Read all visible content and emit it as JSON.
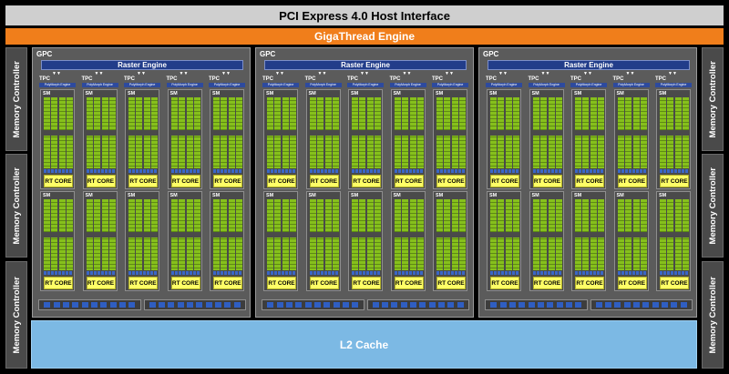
{
  "header": {
    "host_interface": "PCI Express 4.0 Host Interface",
    "engine": "GigaThread Engine"
  },
  "memory_controllers": {
    "label": "Memory Controller",
    "per_side": 3
  },
  "l2": {
    "label": "L2 Cache"
  },
  "gpc": {
    "count": 3,
    "label": "GPC",
    "raster_label": "Raster Engine",
    "tpc_label": "TPC",
    "polymorph_label": "PolyMorph Engine",
    "sm_label": "SM",
    "rt_label": "RT CORE",
    "tpcs_per_gpc": 5,
    "sms_per_tpc": 2
  },
  "colors": {
    "pcie": "#cfcfcf",
    "gigathread": "#f07e1b",
    "l2": "#7cb9e4",
    "cuda_core": "#86c01c",
    "rt_core": "#ffff66",
    "raster": "#223d8a"
  }
}
